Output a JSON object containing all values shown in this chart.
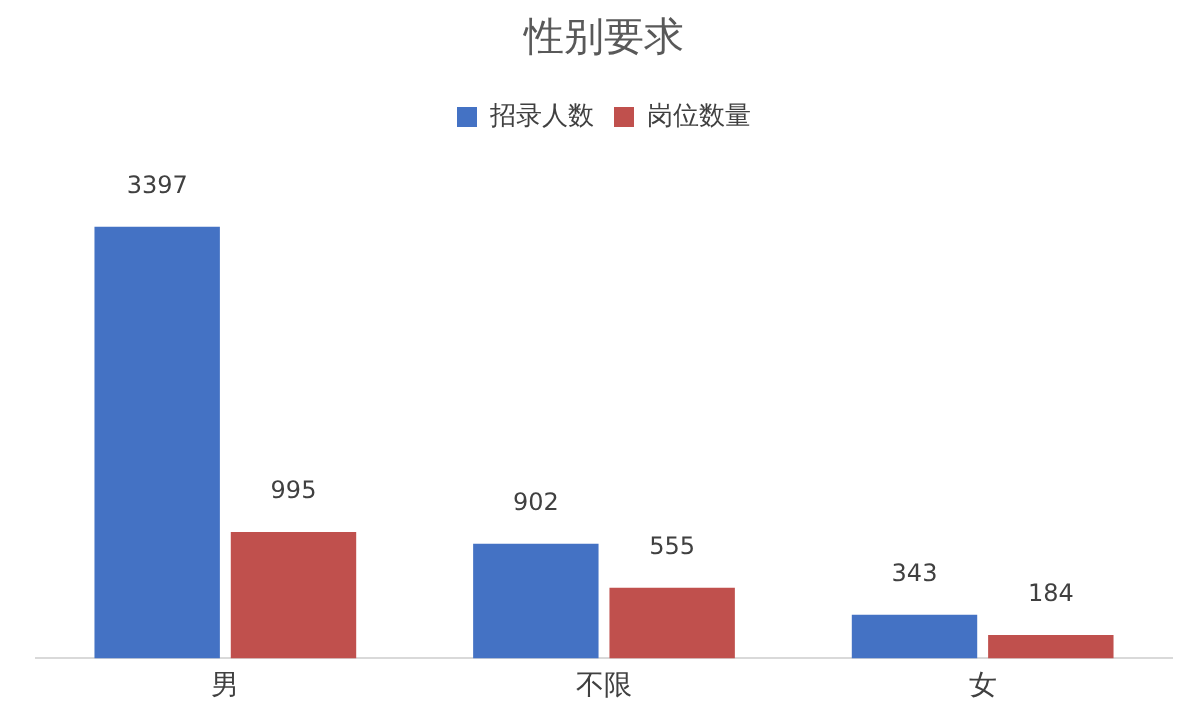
{
  "chart_data": {
    "type": "bar",
    "title": "性别要求",
    "categories": [
      "男",
      "不限",
      "女"
    ],
    "series": [
      {
        "name": "招录人数",
        "color": "#4472c4",
        "values": [
          3397,
          902,
          343
        ]
      },
      {
        "name": "岗位数量",
        "color": "#c0504d",
        "values": [
          995,
          555,
          184
        ]
      }
    ],
    "data_labels": true,
    "legend": "top",
    "grid": false
  }
}
